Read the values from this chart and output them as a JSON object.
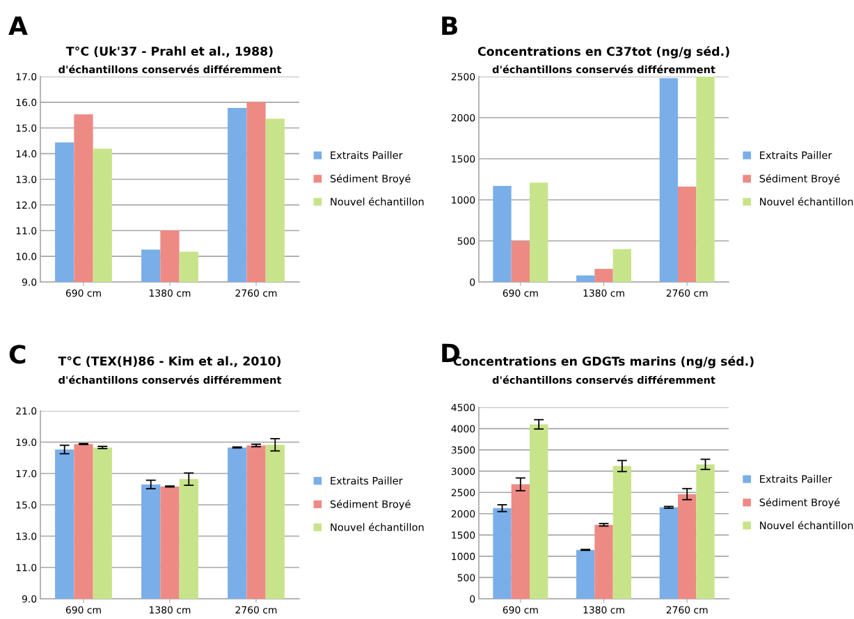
{
  "chart_data": [
    {
      "type": "bar",
      "title": "T°C (Uk'37 - Prahl et al., 1988)",
      "subtitle": "d'échantillons conservés différemment",
      "annotations": [
        "A"
      ],
      "categories": [
        "690 cm",
        "1380 cm",
        "2760 cm"
      ],
      "legend": "right",
      "grid": "y",
      "ylim": [
        9.0,
        17.0
      ],
      "yticks": [
        {
          "value": 9,
          "label": "9.0"
        },
        {
          "value": 10,
          "label": "10.0"
        },
        {
          "value": 11,
          "label": "11.0"
        },
        {
          "value": 12,
          "label": "12.0"
        },
        {
          "value": 13,
          "label": "13.0"
        },
        {
          "value": 14,
          "label": "14.0"
        },
        {
          "value": 15,
          "label": "15.0"
        },
        {
          "value": 16,
          "label": "16.0"
        },
        {
          "value": 17,
          "label": "17.0"
        }
      ],
      "series": [
        {
          "name": "Extraits Pailler",
          "color": "#7aaee8",
          "values": [
            14.44,
            10.26,
            15.78
          ]
        },
        {
          "name": "Sédiment Broyé",
          "color": "#ee8a84",
          "values": [
            15.53,
            11.01,
            16.01
          ]
        },
        {
          "name": "Nouvel échantillon",
          "color": "#c8e48a",
          "values": [
            14.19,
            10.18,
            15.36
          ]
        }
      ]
    },
    {
      "type": "bar",
      "title": "Concentrations en C37tot (ng/g séd.)",
      "subtitle": "d'échantillons conservés différemment",
      "annotations": [
        "B"
      ],
      "categories": [
        "690 cm",
        "1380 cm",
        "2760 cm"
      ],
      "legend": "right",
      "grid": "y",
      "ylim": [
        0,
        2500
      ],
      "yticks": [
        0,
        500,
        1000,
        1500,
        2000,
        2500
      ],
      "series": [
        {
          "name": "Extraits Pailler",
          "color": "#7aaee8",
          "values": [
            1170,
            80,
            2480
          ]
        },
        {
          "name": "Sédiment Broyé",
          "color": "#ee8a84",
          "values": [
            500,
            160,
            1160
          ]
        },
        {
          "name": "Nouvel échantillon",
          "color": "#c8e48a",
          "values": [
            1210,
            400,
            2500
          ]
        }
      ]
    },
    {
      "type": "bar",
      "title": "T°C (TEX(H)86 - Kim et al., 2010)",
      "subtitle": "d'échantillons conservés différemment",
      "annotations": [
        "C"
      ],
      "categories": [
        "690 cm",
        "1380 cm",
        "2760 cm"
      ],
      "legend": "right",
      "grid": "y",
      "ylim": [
        9.0,
        21.0
      ],
      "yticks": [
        {
          "value": 9,
          "label": "9.0"
        },
        {
          "value": 11,
          "label": "11.0"
        },
        {
          "value": 13,
          "label": "13.0"
        },
        {
          "value": 15,
          "label": "15.0"
        },
        {
          "value": 17,
          "label": "17.0"
        },
        {
          "value": 19,
          "label": "19.0"
        },
        {
          "value": 21,
          "label": "21.0"
        }
      ],
      "series": [
        {
          "name": "Extraits Pailler",
          "color": "#7aaee8",
          "values": [
            18.53,
            16.3,
            18.66
          ],
          "errors": [
            0.27,
            0.27,
            0.03
          ]
        },
        {
          "name": "Sédiment Broyé",
          "color": "#ee8a84",
          "values": [
            18.88,
            16.17,
            18.79
          ],
          "errors": [
            0.03,
            0.03,
            0.08
          ]
        },
        {
          "name": "Nouvel échantillon",
          "color": "#c8e48a",
          "values": [
            18.66,
            16.64,
            18.83
          ],
          "errors": [
            0.07,
            0.39,
            0.39
          ]
        }
      ]
    },
    {
      "type": "bar",
      "title": "Concentrations en GDGTs marins (ng/g séd.)",
      "subtitle": "d'échantillons conservés différemment",
      "annotations": [
        "D"
      ],
      "categories": [
        "690 cm",
        "1380 cm",
        "2760 cm"
      ],
      "legend": "right",
      "grid": "y",
      "ylim": [
        0,
        4500
      ],
      "yticks": [
        0,
        500,
        1000,
        1500,
        2000,
        2500,
        3000,
        3500,
        4000,
        4500
      ],
      "series": [
        {
          "name": "Extraits Pailler",
          "color": "#7aaee8",
          "values": [
            2130,
            1150,
            2150
          ],
          "errors": [
            80,
            10,
            20
          ]
        },
        {
          "name": "Sédiment Broyé",
          "color": "#ee8a84",
          "values": [
            2690,
            1740,
            2460
          ],
          "errors": [
            150,
            30,
            130
          ]
        },
        {
          "name": "Nouvel échantillon",
          "color": "#c8e48a",
          "values": [
            4100,
            3120,
            3160
          ],
          "errors": [
            110,
            130,
            120
          ]
        }
      ]
    }
  ]
}
